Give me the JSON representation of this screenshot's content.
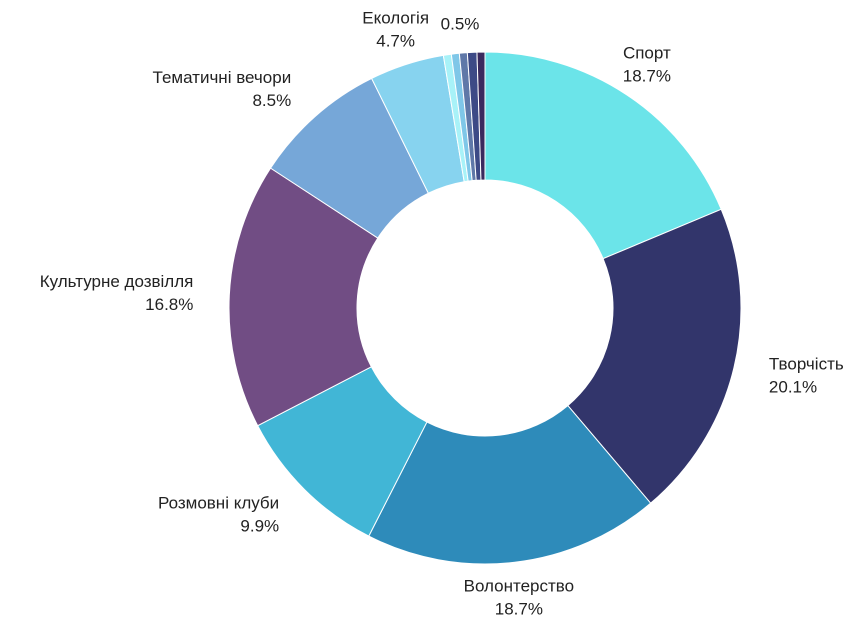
{
  "chart_data": {
    "type": "donut",
    "categories": [
      "Спорт",
      "Творчість",
      "Волонтерство",
      "Розмовні клуби",
      "Культурне дозвілля",
      "Тематичні вечори",
      "Екологія",
      null,
      null,
      null,
      null,
      null
    ],
    "values": [
      18.7,
      20.1,
      18.7,
      9.9,
      16.8,
      8.5,
      4.7,
      0.5,
      0.5,
      0.5,
      0.6,
      0.5
    ],
    "value_labels": [
      "18.7%",
      "20.1%",
      "18.7%",
      "9.9%",
      "16.8%",
      "8.5%",
      "4.7%",
      "0.5%",
      null,
      null,
      null,
      null
    ],
    "colors": [
      "#6be4e9",
      "#32356b",
      "#2e8bba",
      "#41b6d6",
      "#714d84",
      "#76a7d8",
      "#87d3ef",
      "#a8f2f8",
      "#7fc7e8",
      "#5f78a8",
      "#3d4a86",
      "#3a2a5e"
    ]
  }
}
